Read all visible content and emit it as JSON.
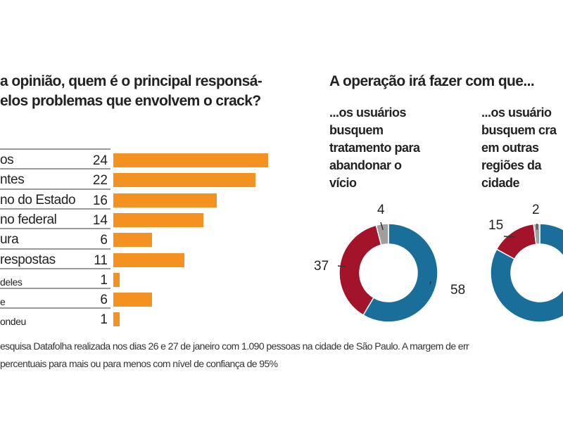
{
  "left_title": [
    "a opinião, quem é o principal responsá-",
    "elos problemas que envolvem o crack?"
  ],
  "right_title": "A operação irá fazer com que...",
  "colors": {
    "bar": "#f39220",
    "blue": "#1a6f9a",
    "red": "#a3142a",
    "gray": "#a0a0a0",
    "separator": "#9a9a9a"
  },
  "chart_data": [
    {
      "type": "bar",
      "orientation": "horizontal",
      "title": "a opinião, quem é o principal responsá- elos problemas que envolvem o crack?",
      "categories": [
        "os",
        "ntes",
        "no do Estado",
        "no federal",
        "ura",
        " respostas",
        "deles",
        "e",
        "ondeu"
      ],
      "small_labels": [
        false,
        false,
        false,
        false,
        false,
        false,
        true,
        true,
        true
      ],
      "values": [
        24,
        22,
        16,
        14,
        6,
        11,
        1,
        6,
        1
      ],
      "data_labels": [
        "24",
        "22",
        "16",
        "14",
        "6",
        "11",
        "1",
        "6",
        "1"
      ],
      "xlim": [
        0,
        24
      ],
      "grid": false
    },
    {
      "type": "pie",
      "donut": true,
      "subtitle": "...os usuários busquem tratamento para abandonar o vício",
      "subtitle_lines": [
        "...os usuários",
        "busquem",
        "tratamento para",
        "abandonar o",
        "vício"
      ],
      "slices": [
        {
          "value": 58,
          "label": "58",
          "color": "#1a6f9a"
        },
        {
          "value": 37,
          "label": "37",
          "color": "#a3142a"
        },
        {
          "value": 4,
          "label": "4",
          "color": "#a0a0a0"
        }
      ]
    },
    {
      "type": "pie",
      "donut": true,
      "subtitle": "...os usuário busquem cra em outras regiões da cidade",
      "subtitle_lines": [
        "...os usuário",
        "busquem cra",
        "em outras",
        "regiões da",
        "cidade"
      ],
      "slices": [
        {
          "value": 83,
          "label": "",
          "color": "#1a6f9a"
        },
        {
          "value": 15,
          "label": "15",
          "color": "#a3142a"
        },
        {
          "value": 2,
          "label": "2",
          "color": "#a0a0a0"
        }
      ]
    }
  ],
  "footer": [
    "esquisa Datafolha realizada nos dias 26 e 27 de janeiro com 1.090 pessoas na cidade de São Paulo. A margem de err",
    " percentuais para mais ou para menos com nível de confiança de 95%"
  ]
}
